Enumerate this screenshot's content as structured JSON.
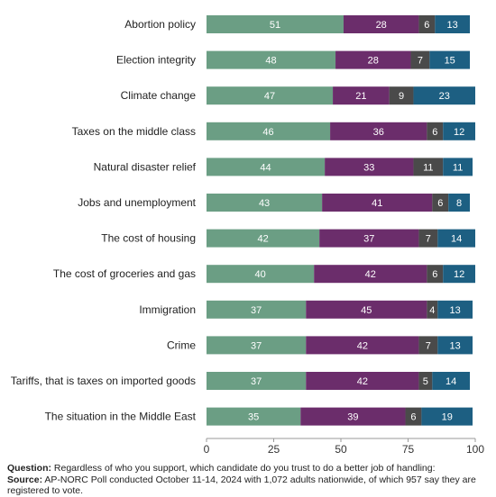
{
  "chart_data": {
    "type": "bar",
    "orientation": "horizontal",
    "stacked": true,
    "categories": [
      "Abortion policy",
      "Election integrity",
      "Climate change",
      "Taxes on the middle class",
      "Natural disaster relief",
      "Jobs and unemployment",
      "The cost of housing",
      "The cost of groceries and gas",
      "Immigration",
      "Crime",
      "Tariffs, that is taxes on imported goods",
      "The situation in the Middle East"
    ],
    "series": [
      {
        "color": "#6b9e84",
        "values": [
          51,
          48,
          47,
          46,
          44,
          43,
          42,
          40,
          37,
          37,
          37,
          35
        ]
      },
      {
        "color": "#6b2d6b",
        "values": [
          28,
          28,
          21,
          36,
          33,
          41,
          37,
          42,
          45,
          42,
          42,
          39
        ]
      },
      {
        "color": "#4a4a4a",
        "values": [
          6,
          7,
          9,
          6,
          11,
          6,
          7,
          6,
          4,
          7,
          5,
          6
        ]
      },
      {
        "color": "#1d5f82",
        "values": [
          13,
          15,
          23,
          12,
          11,
          8,
          14,
          12,
          13,
          13,
          14,
          19
        ]
      }
    ],
    "xlim": [
      0,
      100
    ],
    "xticks": [
      "0",
      "25",
      "50",
      "75",
      "100"
    ],
    "grid": false,
    "legend": "none"
  },
  "footer": {
    "question_label": "Question:",
    "question_text": " Regardless of who you support, which candidate do you trust to do a better job of handling:",
    "source_label": "Source:",
    "source_text": " AP-NORC Poll conducted October 11-14, 2024 with 1,072 adults nationwide, of which 957 say they are registered to vote."
  }
}
